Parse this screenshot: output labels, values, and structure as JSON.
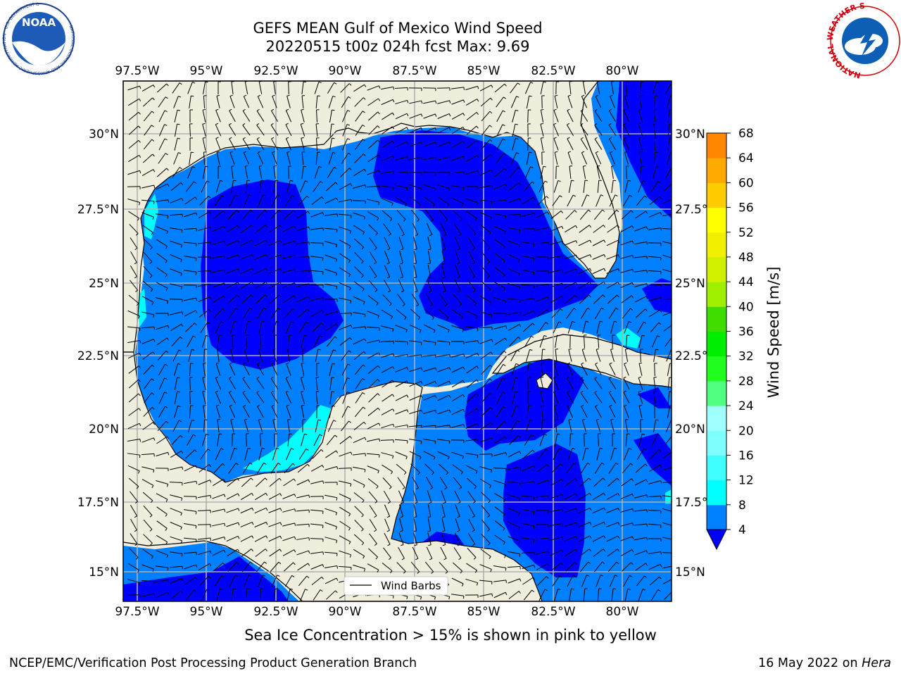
{
  "title": {
    "line1": "GEFS MEAN Gulf of Mexico Wind Speed",
    "line2": "20220515 t00z 024h fcst   Max: 9.69"
  },
  "map": {
    "lon_range": [
      -98,
      -78.2
    ],
    "lat_range": [
      14,
      31.8
    ],
    "lon_ticks": [
      "97.5°W",
      "95°W",
      "92.5°W",
      "90°W",
      "87.5°W",
      "85°W",
      "82.5°W",
      "80°W"
    ],
    "lat_ticks": [
      "15°N",
      "17.5°N",
      "20°N",
      "22.5°N",
      "25°N",
      "27.5°N",
      "30°N"
    ],
    "grid": true,
    "land_color": "#efeddc",
    "legend_label": "Wind Barbs"
  },
  "colorbar": {
    "label": "Wind Speed [m/s]",
    "ticks": [
      "4",
      "8",
      "12",
      "16",
      "20",
      "24",
      "28",
      "32",
      "36",
      "40",
      "44",
      "48",
      "52",
      "56",
      "60",
      "64",
      "68"
    ],
    "colors": [
      "#0080ff",
      "#00ffff",
      "#40ffff",
      "#80ffff",
      "#a0ffff",
      "#50ff80",
      "#20ff20",
      "#00ee00",
      "#40dd00",
      "#a0ee00",
      "#d0f000",
      "#f0f000",
      "#ffff00",
      "#ffcc00",
      "#ffaa00",
      "#ff8800",
      "#ff5500",
      "#ff2200",
      "#ff0000"
    ],
    "extend_color": "#0000ff"
  },
  "note": "Sea Ice Concentration > 15% is shown in pink to yellow",
  "footer": {
    "left": "NCEP/EMC/Verification Post Processing Product Generation Branch",
    "right_prefix": "16 May 2022 on",
    "right_machine": "Hera"
  },
  "logos": {
    "noaa_text": "NOAA",
    "noaa_ring": "NATIONAL OCEANIC AND ATMOSPHERIC ADMINISTRATION · U.S. DEPARTMENT OF COMMERCE",
    "nws_ring": "NATIONAL WEATHER SERVICE"
  }
}
